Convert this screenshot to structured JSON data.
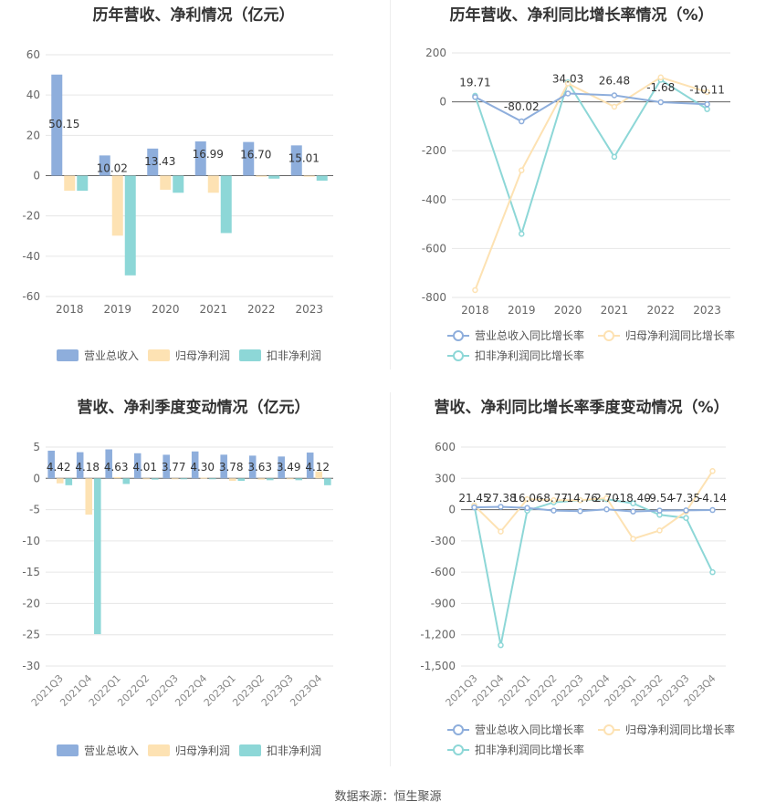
{
  "source": "数据来源：恒生聚源",
  "colors": {
    "revenue": "#8eaedc",
    "net_profit": "#fde2b3",
    "deducted": "#8dd7d7",
    "grid": "#e6e6e6"
  },
  "chart_data": [
    {
      "type": "bar",
      "title": "历年营收、净利情况（亿元）",
      "categories": [
        "2018",
        "2019",
        "2020",
        "2021",
        "2022",
        "2023"
      ],
      "series": [
        {
          "name": "营业总收入",
          "values": [
            50.15,
            10.02,
            13.43,
            16.99,
            16.7,
            15.01
          ],
          "labels": [
            "50.15",
            "10.02",
            "13.43",
            "16.99",
            "16.70",
            "15.01"
          ]
        },
        {
          "name": "归母净利润",
          "values": [
            -7.5,
            -29.8,
            -7.0,
            -8.5,
            -0.5,
            -0.5
          ]
        },
        {
          "name": "扣非净利润",
          "values": [
            -7.5,
            -49.5,
            -8.5,
            -28.5,
            -1.5,
            -2.5
          ]
        }
      ],
      "ylim": [
        -60,
        60
      ],
      "yticks": [
        "-60",
        "-40",
        "-20",
        "0",
        "20",
        "40",
        "60"
      ],
      "ytick_values": [
        -60,
        -40,
        -20,
        0,
        20,
        40,
        60
      ],
      "legend": "bottom"
    },
    {
      "type": "line",
      "title": "历年营收、净利同比增长率情况（%）",
      "categories": [
        "2018",
        "2019",
        "2020",
        "2021",
        "2022",
        "2023"
      ],
      "series": [
        {
          "name": "营业总收入同比增长率",
          "values": [
            19.71,
            -80.02,
            34.03,
            26.48,
            -1.68,
            -10.11
          ],
          "labels": [
            "19.71",
            "-80.02",
            "34.03",
            "26.48",
            "-1.68",
            "-10.11"
          ]
        },
        {
          "name": "归母净利润同比增长率",
          "values": [
            -770,
            -280,
            75,
            -20,
            100,
            40
          ]
        },
        {
          "name": "扣非净利润同比增长率",
          "values": [
            25,
            -540,
            80,
            -225,
            90,
            -30
          ]
        }
      ],
      "ylim": [
        -800,
        200
      ],
      "yticks": [
        "-800",
        "-600",
        "-400",
        "-200",
        "0",
        "200"
      ],
      "ytick_values": [
        -800,
        -600,
        -400,
        -200,
        0,
        200
      ],
      "legend": "bottom"
    },
    {
      "type": "bar",
      "title": "营收、净利季度变动情况（亿元）",
      "categories": [
        "2021Q3",
        "2021Q4",
        "2022Q1",
        "2022Q2",
        "2022Q3",
        "2022Q4",
        "2023Q1",
        "2023Q2",
        "2023Q3",
        "2023Q4"
      ],
      "series": [
        {
          "name": "营业总收入",
          "values": [
            4.42,
            4.18,
            4.63,
            4.01,
            3.77,
            4.3,
            3.78,
            3.63,
            3.49,
            4.12
          ],
          "labels": [
            "4.42",
            "4.18",
            "4.63",
            "4.01",
            "3.77",
            "4.30",
            "3.78",
            "3.63",
            "3.49",
            "4.12"
          ]
        },
        {
          "name": "归母净利润",
          "values": [
            -0.8,
            -5.8,
            0.2,
            -0.1,
            -0.1,
            0.1,
            -0.4,
            -0.2,
            -0.1,
            1.1
          ]
        },
        {
          "name": "扣非净利润",
          "values": [
            -1.1,
            -24.9,
            -0.9,
            -0.2,
            -0.1,
            -0.1,
            -0.4,
            -0.3,
            -0.3,
            -1.1
          ]
        }
      ],
      "ylim": [
        -30,
        5
      ],
      "yticks": [
        "-30",
        "-25",
        "-20",
        "-15",
        "-10",
        "-5",
        "0",
        "5"
      ],
      "ytick_values": [
        -30,
        -25,
        -20,
        -15,
        -10,
        -5,
        0,
        5
      ],
      "legend": "bottom"
    },
    {
      "type": "line",
      "title": "营收、净利同比增长率季度变动情况（%）",
      "categories": [
        "2021Q3",
        "2021Q4",
        "2022Q1",
        "2022Q2",
        "2022Q3",
        "2022Q4",
        "2023Q1",
        "2023Q2",
        "2023Q3",
        "2023Q4"
      ],
      "series": [
        {
          "name": "营业总收入同比增长率",
          "values": [
            21.45,
            27.38,
            16.06,
            -8.77,
            -14.76,
            2.7,
            -18.4,
            -9.54,
            -7.35,
            -4.14
          ],
          "labels": [
            "21.45",
            "27.38",
            "16.06",
            "-8.77",
            "-14.76",
            "2.70",
            "-18.40",
            "-9.54",
            "-7.35",
            "-4.14"
          ]
        },
        {
          "name": "归母净利润同比增长率",
          "values": [
            40,
            -210,
            100,
            90,
            90,
            110,
            -280,
            -200,
            -20,
            370
          ]
        },
        {
          "name": "扣非净利润同比增长率",
          "values": [
            40,
            -1300,
            -10,
            70,
            90,
            100,
            60,
            -50,
            -80,
            -600
          ]
        }
      ],
      "ylim": [
        -1500,
        600
      ],
      "yticks": [
        "-1,500",
        "-1,200",
        "-900",
        "-600",
        "-300",
        "0",
        "300",
        "600"
      ],
      "ytick_values": [
        -1500,
        -1200,
        -900,
        -600,
        -300,
        0,
        300,
        600
      ],
      "legend": "bottom"
    }
  ]
}
